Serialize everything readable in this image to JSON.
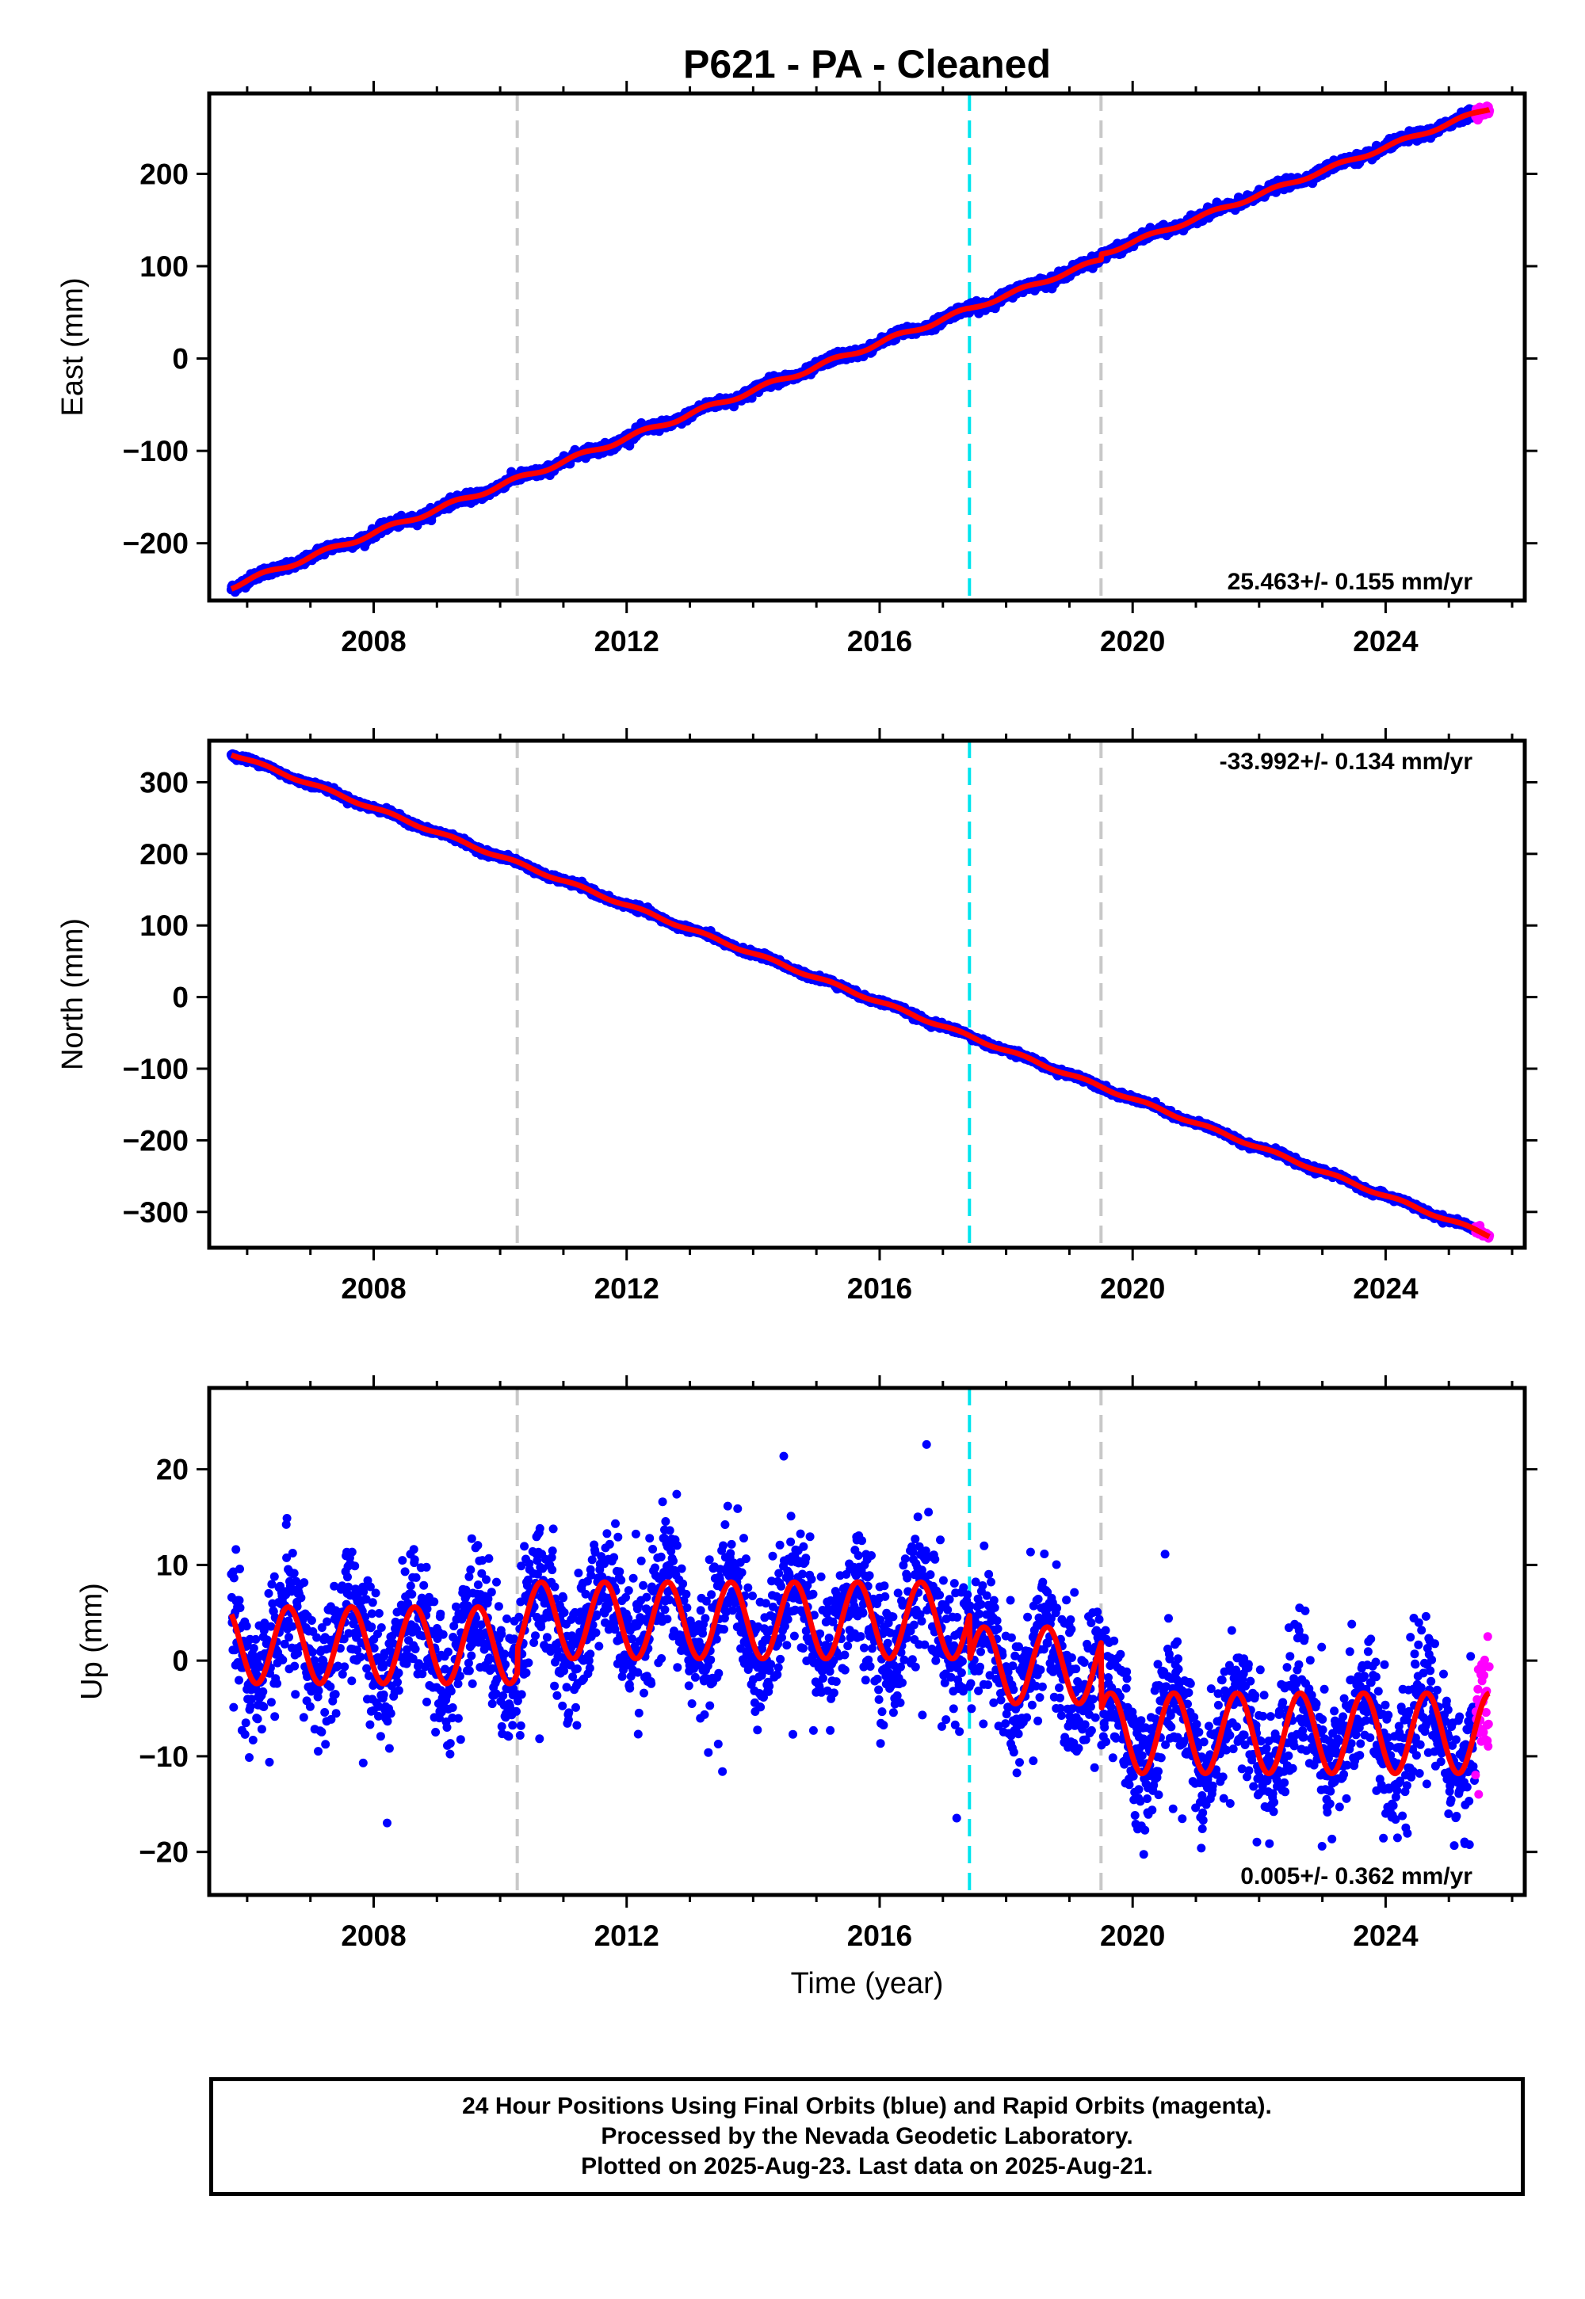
{
  "title": "P621  - PA - Cleaned",
  "colors": {
    "final_orbits": "#0000ff",
    "rapid_orbits": "#ff00ff",
    "model_fit": "#ff0000",
    "antenna_change": "#c8c8c8",
    "equipment_change": "#00e5ee"
  },
  "chart_data": [
    {
      "type": "scatter",
      "panel": "east",
      "ylabel": "East (mm)",
      "xlabel": "",
      "xlim": [
        2005.4,
        2026.2
      ],
      "ylim": [
        -262,
        287
      ],
      "x_ticks": [
        2008,
        2012,
        2016,
        2020,
        2024
      ],
      "y_ticks": [
        -200,
        -100,
        0,
        100,
        200
      ],
      "rate_label": "25.463+/- 0.155 mm/yr",
      "rate_position": "bottom-right",
      "data_start": 2005.75,
      "data_end": 2025.64,
      "rapid_start": 2025.42,
      "trend": {
        "value_at_start": -247,
        "value_at_end": 271
      },
      "offsets": [
        {
          "time": 2019.5,
          "jump": 6
        }
      ],
      "seasonal": {
        "amplitude": 2.5,
        "amplitude_after_2017.4": 2.0
      },
      "scatter_sd": 2.5,
      "vertical_lines": [
        {
          "time": 2010.27,
          "kind": "antenna_change"
        },
        {
          "time": 2017.42,
          "kind": "equipment_change"
        },
        {
          "time": 2019.5,
          "kind": "antenna_change"
        }
      ]
    },
    {
      "type": "scatter",
      "panel": "north",
      "ylabel": "North (mm)",
      "xlabel": "",
      "xlim": [
        2005.4,
        2026.2
      ],
      "ylim": [
        -350,
        358
      ],
      "x_ticks": [
        2008,
        2012,
        2016,
        2020,
        2024
      ],
      "y_ticks": [
        -300,
        -200,
        -100,
        0,
        100,
        200,
        300
      ],
      "rate_label": "-33.992+/- 0.134 mm/yr",
      "rate_position": "top-right",
      "data_start": 2005.75,
      "data_end": 2025.64,
      "rapid_start": 2025.42,
      "trend": {
        "value_at_start": 340,
        "value_at_end": -333
      },
      "offsets": [],
      "seasonal": {
        "amplitude": 2.0,
        "amplitude_after_2017.4": 2.0
      },
      "scatter_sd": 2.0,
      "vertical_lines": [
        {
          "time": 2010.27,
          "kind": "antenna_change"
        },
        {
          "time": 2017.42,
          "kind": "equipment_change"
        },
        {
          "time": 2019.5,
          "kind": "antenna_change"
        }
      ]
    },
    {
      "type": "scatter",
      "panel": "up",
      "ylabel": "Up (mm)",
      "xlabel": "Time (year)",
      "xlim": [
        2005.4,
        2026.2
      ],
      "ylim": [
        -24.5,
        28.5
      ],
      "x_ticks": [
        2008,
        2012,
        2016,
        2020,
        2024
      ],
      "y_ticks": [
        -20,
        -10,
        0,
        10,
        20
      ],
      "rate_label": "0.005+/- 0.362 mm/yr",
      "rate_position": "bottom-right",
      "data_start": 2005.75,
      "data_end": 2025.64,
      "rapid_start": 2025.42,
      "model_segments": [
        {
          "start": 2005.75,
          "end": 2010.27,
          "mean": 1.6,
          "amplitude": 4.0
        },
        {
          "start": 2010.27,
          "end": 2017.42,
          "mean": 4.2,
          "amplitude": 4.0
        },
        {
          "start": 2017.42,
          "end": 2019.5,
          "mean": -0.5,
          "amplitude": 4.0
        },
        {
          "start": 2019.5,
          "end": 2025.64,
          "mean": -7.6,
          "amplitude": 4.2
        }
      ],
      "seasonal_peak_phase": 0.65,
      "scatter_sd": 3.4,
      "vertical_lines": [
        {
          "time": 2010.27,
          "kind": "antenna_change"
        },
        {
          "time": 2017.42,
          "kind": "equipment_change"
        },
        {
          "time": 2019.5,
          "kind": "antenna_change"
        }
      ]
    }
  ],
  "footer": {
    "line1": "24 Hour Positions Using Final Orbits (blue) and Rapid Orbits (magenta).",
    "line2": "Processed by the Nevada Geodetic Laboratory.",
    "line3": "Plotted on 2025-Aug-23. Last data on 2025-Aug-21."
  }
}
